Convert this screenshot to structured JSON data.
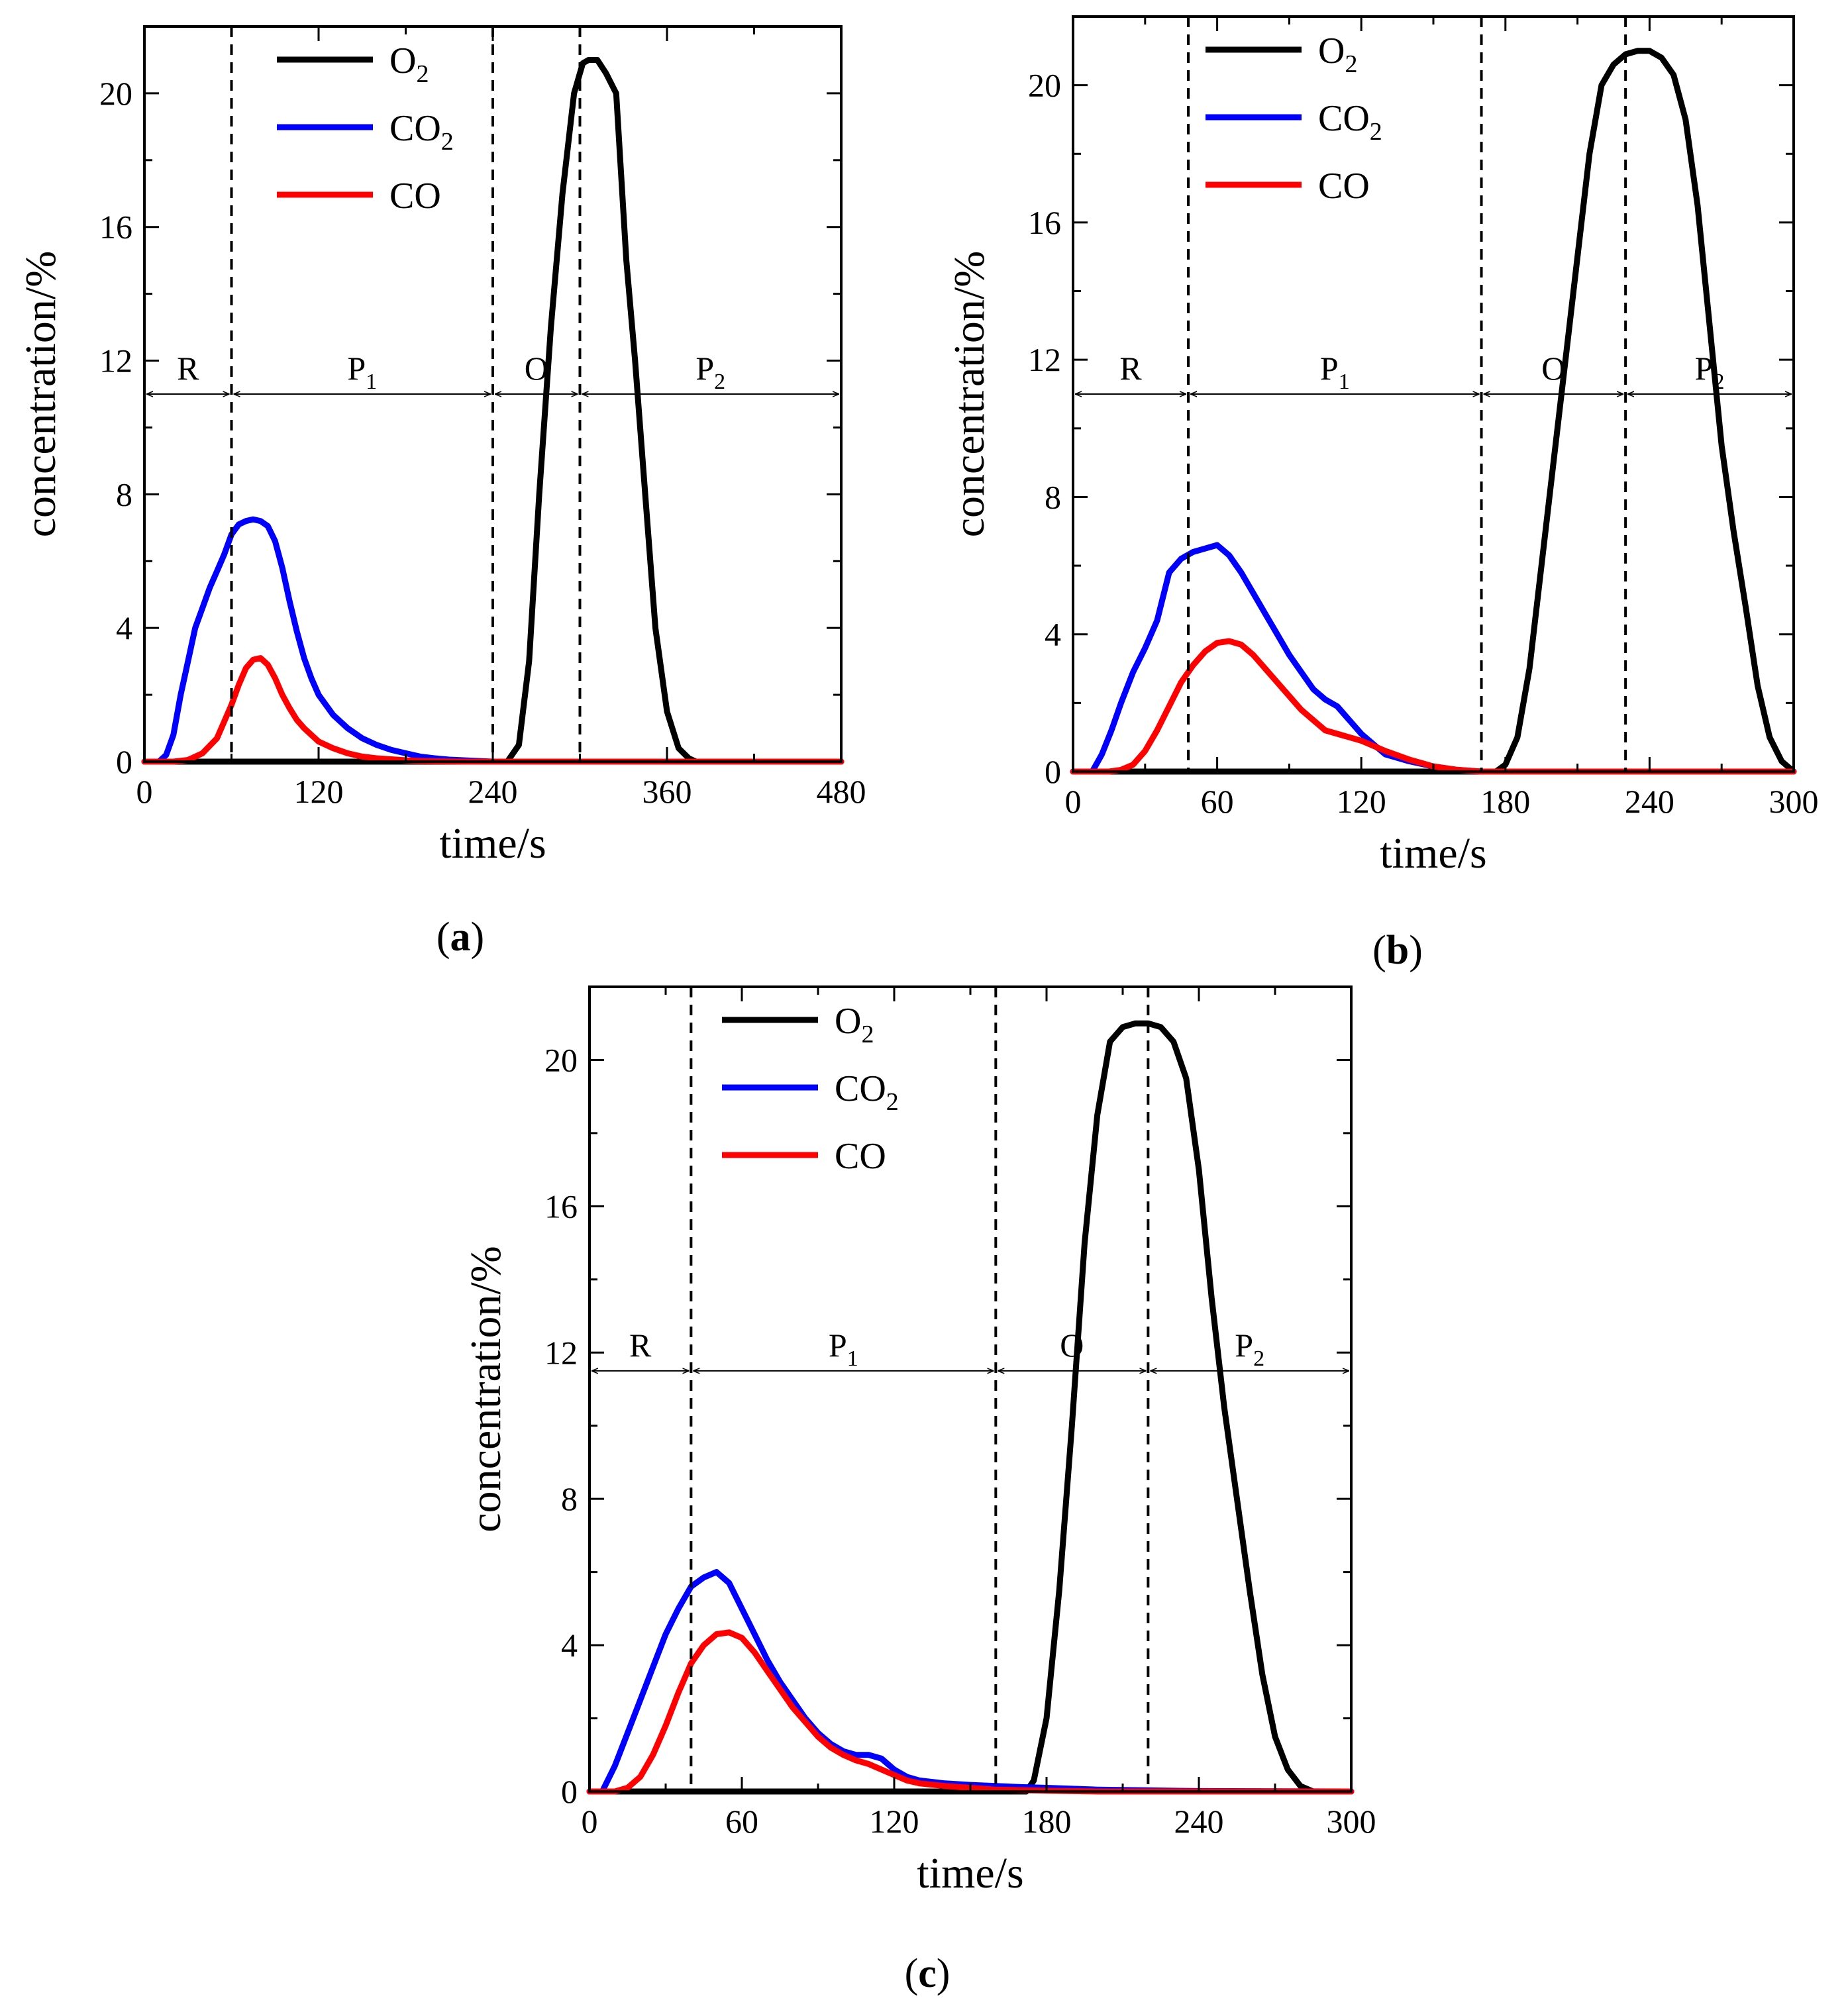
{
  "figure": {
    "series_colors": {
      "O2": "#000000",
      "CO2": "#0000ff",
      "CO": "#ff0000"
    },
    "subscript_2": "2",
    "subscript_1": "1"
  },
  "chart_data": [
    {
      "panel_label_letter": "a",
      "type": "line",
      "xlabel": "time/s",
      "ylabel": "concentration/%",
      "xlim": [
        0,
        480
      ],
      "ylim": [
        0,
        22
      ],
      "xticks": [
        0,
        120,
        240,
        360,
        480
      ],
      "yticks": [
        0,
        4,
        8,
        12,
        16,
        20
      ],
      "legend": {
        "position": "top-left",
        "entries": [
          {
            "base": "O",
            "sub": "2"
          },
          {
            "base": "CO",
            "sub": "2"
          },
          {
            "base": "CO",
            "sub": ""
          }
        ]
      },
      "dividers": [
        60,
        240,
        300
      ],
      "regions": [
        {
          "base": "R",
          "sub": "",
          "start": 0,
          "end": 60
        },
        {
          "base": "P",
          "sub": "1",
          "start": 60,
          "end": 240
        },
        {
          "base": "O",
          "sub": "",
          "start": 240,
          "end": 300
        },
        {
          "base": "P",
          "sub": "2",
          "start": 300,
          "end": 480
        }
      ],
      "arrow_y": 11,
      "series": [
        {
          "name": "O2",
          "color": "#000000",
          "x": [
            0,
            240,
            250,
            258,
            265,
            272,
            280,
            288,
            296,
            302,
            306,
            312,
            318,
            325,
            332,
            338,
            345,
            352,
            360,
            368,
            375,
            380,
            390,
            480
          ],
          "y": [
            0,
            0,
            0,
            0.5,
            3,
            8,
            13,
            17,
            20,
            20.9,
            21,
            21,
            20.6,
            20,
            15,
            12,
            8,
            4,
            1.5,
            0.4,
            0.1,
            0,
            0,
            0
          ]
        },
        {
          "name": "CO2",
          "color": "#0000ff",
          "x": [
            0,
            10,
            15,
            20,
            25,
            30,
            35,
            40,
            45,
            50,
            55,
            60,
            65,
            70,
            75,
            80,
            85,
            90,
            95,
            100,
            105,
            110,
            115,
            120,
            130,
            140,
            150,
            160,
            170,
            180,
            190,
            200,
            210,
            220,
            230,
            240,
            480
          ],
          "y": [
            0,
            0,
            0.2,
            0.8,
            2,
            3,
            4,
            4.6,
            5.2,
            5.7,
            6.2,
            6.8,
            7.1,
            7.2,
            7.25,
            7.2,
            7.05,
            6.6,
            5.8,
            4.8,
            3.9,
            3.1,
            2.5,
            2.0,
            1.4,
            1.0,
            0.7,
            0.5,
            0.35,
            0.25,
            0.15,
            0.1,
            0.06,
            0.04,
            0.02,
            0,
            0
          ]
        },
        {
          "name": "CO",
          "color": "#ff0000",
          "x": [
            0,
            20,
            30,
            40,
            50,
            55,
            60,
            65,
            70,
            75,
            80,
            85,
            90,
            95,
            100,
            105,
            110,
            115,
            120,
            130,
            140,
            150,
            160,
            170,
            180,
            190,
            200,
            220,
            240,
            480
          ],
          "y": [
            0,
            0,
            0.05,
            0.25,
            0.7,
            1.2,
            1.7,
            2.3,
            2.8,
            3.05,
            3.1,
            2.9,
            2.5,
            2.0,
            1.6,
            1.25,
            1.0,
            0.8,
            0.6,
            0.4,
            0.25,
            0.15,
            0.1,
            0.07,
            0.04,
            0.02,
            0.01,
            0,
            0,
            0
          ]
        }
      ]
    },
    {
      "panel_label_letter": "b",
      "type": "line",
      "xlabel": "time/s",
      "ylabel": "concentration/%",
      "xlim": [
        0,
        300
      ],
      "ylim": [
        0,
        22
      ],
      "xticks": [
        0,
        60,
        120,
        180,
        240,
        300
      ],
      "yticks": [
        0,
        4,
        8,
        12,
        16,
        20
      ],
      "legend": {
        "position": "top-left",
        "entries": [
          {
            "base": "O",
            "sub": "2"
          },
          {
            "base": "CO",
            "sub": "2"
          },
          {
            "base": "CO",
            "sub": ""
          }
        ]
      },
      "dividers": [
        48,
        170,
        230
      ],
      "regions": [
        {
          "base": "R",
          "sub": "",
          "start": 0,
          "end": 48
        },
        {
          "base": "P",
          "sub": "1",
          "start": 48,
          "end": 170
        },
        {
          "base": "O",
          "sub": "",
          "start": 170,
          "end": 230
        },
        {
          "base": "P",
          "sub": "2",
          "start": 230,
          "end": 300
        }
      ],
      "arrow_y": 11,
      "series": [
        {
          "name": "O2",
          "color": "#000000",
          "x": [
            0,
            176,
            180,
            185,
            190,
            195,
            200,
            205,
            210,
            215,
            220,
            225,
            230,
            235,
            240,
            245,
            250,
            255,
            260,
            265,
            270,
            275,
            280,
            285,
            290,
            295,
            300
          ],
          "y": [
            0,
            0,
            0.2,
            1,
            3,
            6,
            9,
            12,
            15,
            18,
            20,
            20.6,
            20.9,
            21,
            21,
            20.8,
            20.3,
            19,
            16.5,
            13,
            9.5,
            7,
            4.8,
            2.5,
            1,
            0.3,
            0
          ]
        },
        {
          "name": "CO2",
          "color": "#0000ff",
          "x": [
            0,
            8,
            12,
            16,
            20,
            25,
            30,
            35,
            40,
            45,
            50,
            55,
            60,
            65,
            70,
            75,
            80,
            85,
            90,
            95,
            100,
            105,
            110,
            115,
            120,
            125,
            130,
            140,
            150,
            160,
            170,
            300
          ],
          "y": [
            0,
            0,
            0.5,
            1.2,
            2,
            2.9,
            3.6,
            4.4,
            5.8,
            6.2,
            6.4,
            6.5,
            6.6,
            6.3,
            5.8,
            5.2,
            4.6,
            4.0,
            3.4,
            2.9,
            2.4,
            2.1,
            1.9,
            1.5,
            1.1,
            0.8,
            0.5,
            0.3,
            0.15,
            0.05,
            0,
            0
          ]
        },
        {
          "name": "CO",
          "color": "#ff0000",
          "x": [
            0,
            15,
            20,
            25,
            30,
            35,
            40,
            45,
            50,
            55,
            60,
            65,
            70,
            75,
            80,
            85,
            90,
            95,
            100,
            105,
            110,
            120,
            130,
            140,
            150,
            160,
            170,
            300
          ],
          "y": [
            0,
            0,
            0.05,
            0.2,
            0.6,
            1.2,
            1.9,
            2.6,
            3.1,
            3.5,
            3.75,
            3.8,
            3.7,
            3.4,
            3.0,
            2.6,
            2.2,
            1.8,
            1.5,
            1.2,
            1.1,
            0.9,
            0.6,
            0.35,
            0.15,
            0.05,
            0,
            0
          ]
        }
      ]
    },
    {
      "panel_label_letter": "c",
      "type": "line",
      "xlabel": "time/s",
      "ylabel": "concentration/%",
      "xlim": [
        0,
        300
      ],
      "ylim": [
        0,
        22
      ],
      "xticks": [
        0,
        60,
        120,
        180,
        240,
        300
      ],
      "yticks": [
        0,
        4,
        8,
        12,
        16,
        20
      ],
      "legend": {
        "position": "top-left",
        "entries": [
          {
            "base": "O",
            "sub": "2"
          },
          {
            "base": "CO",
            "sub": "2"
          },
          {
            "base": "CO",
            "sub": ""
          }
        ]
      },
      "dividers": [
        40,
        160,
        220
      ],
      "regions": [
        {
          "base": "R",
          "sub": "",
          "start": 0,
          "end": 40
        },
        {
          "base": "P",
          "sub": "1",
          "start": 40,
          "end": 160
        },
        {
          "base": "O",
          "sub": "",
          "start": 160,
          "end": 220
        },
        {
          "base": "P",
          "sub": "2",
          "start": 220,
          "end": 300
        }
      ],
      "arrow_y": 11.5,
      "series": [
        {
          "name": "O2",
          "color": "#000000",
          "x": [
            0,
            172,
            175,
            180,
            185,
            190,
            195,
            200,
            205,
            210,
            215,
            220,
            225,
            230,
            235,
            240,
            245,
            250,
            255,
            260,
            265,
            270,
            275,
            280,
            285,
            290,
            300
          ],
          "y": [
            0,
            0,
            0.3,
            2,
            5.5,
            10,
            15,
            18.5,
            20.5,
            20.9,
            21,
            21,
            20.9,
            20.5,
            19.5,
            17,
            13.5,
            10.5,
            8,
            5.5,
            3.2,
            1.5,
            0.6,
            0.15,
            0,
            0,
            0
          ]
        },
        {
          "name": "CO2",
          "color": "#0000ff",
          "x": [
            0,
            5,
            10,
            15,
            20,
            25,
            30,
            35,
            40,
            45,
            50,
            55,
            60,
            65,
            70,
            75,
            80,
            85,
            90,
            95,
            100,
            105,
            110,
            115,
            120,
            125,
            130,
            140,
            150,
            160,
            170,
            180,
            200,
            220,
            240,
            300
          ],
          "y": [
            0,
            0,
            0.7,
            1.6,
            2.5,
            3.4,
            4.3,
            5.0,
            5.6,
            5.85,
            6.0,
            5.7,
            5.0,
            4.3,
            3.6,
            3.0,
            2.5,
            2.0,
            1.6,
            1.3,
            1.1,
            1.0,
            1.0,
            0.9,
            0.6,
            0.4,
            0.3,
            0.22,
            0.18,
            0.15,
            0.12,
            0.1,
            0.05,
            0.03,
            0.01,
            0
          ]
        },
        {
          "name": "CO",
          "color": "#ff0000",
          "x": [
            0,
            10,
            15,
            20,
            25,
            30,
            35,
            40,
            45,
            50,
            55,
            60,
            65,
            70,
            75,
            80,
            85,
            90,
            95,
            100,
            105,
            110,
            115,
            120,
            125,
            130,
            140,
            150,
            160,
            180,
            200,
            300
          ],
          "y": [
            0,
            0,
            0.1,
            0.4,
            1.0,
            1.8,
            2.7,
            3.5,
            4.0,
            4.3,
            4.35,
            4.2,
            3.8,
            3.3,
            2.8,
            2.3,
            1.9,
            1.5,
            1.2,
            1.0,
            0.85,
            0.75,
            0.6,
            0.45,
            0.3,
            0.22,
            0.15,
            0.1,
            0.05,
            0.02,
            0,
            0
          ]
        }
      ]
    }
  ]
}
